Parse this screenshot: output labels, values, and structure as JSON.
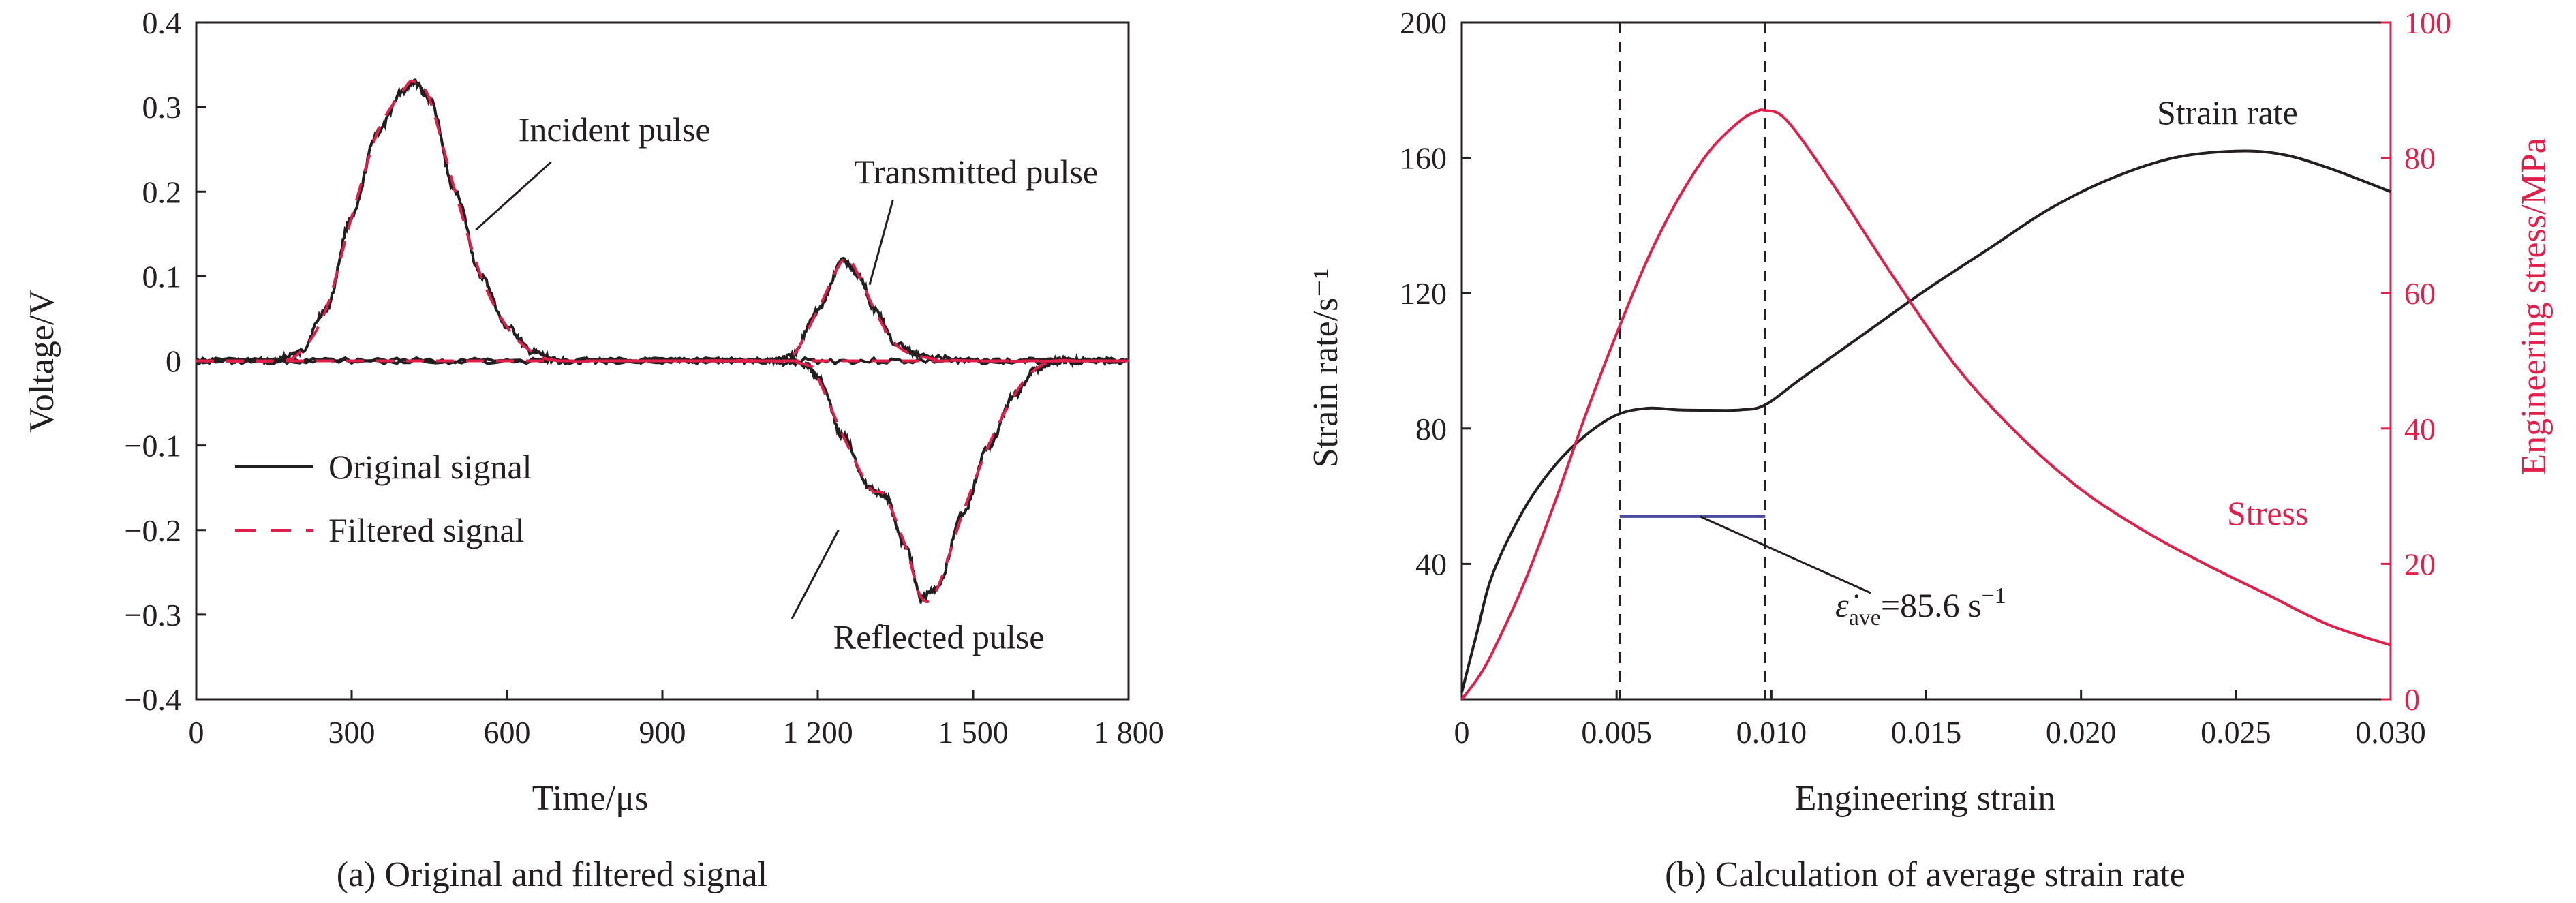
{
  "colors": {
    "original": "#231f20",
    "filtered": "#e0204a",
    "strain_rate": "#231f20",
    "stress": "#e0204a",
    "average_line": "#4a4a9c",
    "right_axis": "#e0204a"
  },
  "chart_data": [
    {
      "type": "line",
      "caption": "(a) Original and filtered signal",
      "xlabel": "Time/μs",
      "ylabel": "Voltage/V",
      "xlim": [
        0,
        1800
      ],
      "ylim": [
        -0.4,
        0.4
      ],
      "x_ticks": [
        "0",
        "300",
        "600",
        "900",
        "1 200",
        "1 500",
        "1 800"
      ],
      "y_ticks": [
        "−0.4",
        "−0.3",
        "−0.2",
        "−0.1",
        "0",
        "0.1",
        "0.2",
        "0.3",
        "0.4"
      ],
      "legend_position": "bottom-left",
      "legend": [
        "Original signal",
        "Filtered signal"
      ],
      "series": [
        {
          "name": "Original signal",
          "style": "solid",
          "curves": [
            {
              "x": [
                0,
                150,
                200,
                250,
                300,
                350,
                400,
                420,
                450,
                500,
                550,
                600,
                650,
                700,
                800,
                1000,
                1200,
                1400,
                1600,
                1800
              ],
              "y": [
                0,
                0,
                0.01,
                0.06,
                0.17,
                0.27,
                0.32,
                0.33,
                0.31,
                0.2,
                0.1,
                0.04,
                0.01,
                0,
                0,
                0,
                0,
                0,
                0,
                0
              ]
            },
            {
              "x": [
                0,
                300,
                600,
                900,
                1100,
                1150,
                1200,
                1250,
                1280,
                1310,
                1350,
                1400,
                1500,
                1800
              ],
              "y": [
                0,
                0,
                0,
                0,
                0,
                0.005,
                0.06,
                0.12,
                0.1,
                0.06,
                0.02,
                0.005,
                0,
                0
              ]
            },
            {
              "x": [
                0,
                300,
                600,
                900,
                1100,
                1180,
                1200,
                1250,
                1300,
                1330,
                1370,
                1400,
                1430,
                1480,
                1530,
                1580,
                1620,
                1660,
                1700,
                1800
              ],
              "y": [
                0,
                0,
                0,
                0,
                0,
                -0.005,
                -0.02,
                -0.09,
                -0.15,
                -0.16,
                -0.22,
                -0.28,
                -0.27,
                -0.18,
                -0.1,
                -0.04,
                -0.01,
                0,
                0,
                0
              ]
            }
          ]
        },
        {
          "name": "Filtered signal",
          "style": "dashed",
          "curves": [
            {
              "x": [
                0,
                150,
                200,
                250,
                300,
                350,
                400,
                420,
                450,
                500,
                550,
                600,
                650,
                700,
                800,
                1000,
                1200,
                1400,
                1600,
                1800
              ],
              "y": [
                0,
                0,
                0.01,
                0.06,
                0.17,
                0.27,
                0.32,
                0.33,
                0.31,
                0.2,
                0.1,
                0.04,
                0.01,
                0,
                0,
                0,
                0,
                0,
                0,
                0
              ]
            },
            {
              "x": [
                0,
                300,
                600,
                900,
                1100,
                1150,
                1200,
                1250,
                1280,
                1310,
                1350,
                1400,
                1500,
                1800
              ],
              "y": [
                0,
                0,
                0,
                0,
                0,
                0.005,
                0.06,
                0.12,
                0.1,
                0.06,
                0.02,
                0.005,
                0,
                0
              ]
            },
            {
              "x": [
                0,
                300,
                600,
                900,
                1100,
                1180,
                1200,
                1250,
                1300,
                1330,
                1370,
                1400,
                1430,
                1480,
                1530,
                1580,
                1620,
                1660,
                1700,
                1800
              ],
              "y": [
                0,
                0,
                0,
                0,
                0,
                -0.005,
                -0.02,
                -0.09,
                -0.15,
                -0.16,
                -0.22,
                -0.28,
                -0.27,
                -0.18,
                -0.1,
                -0.04,
                -0.01,
                0,
                0,
                0
              ]
            }
          ]
        }
      ],
      "annotations": [
        {
          "text": "Incident pulse",
          "x": 622,
          "y": 0.26,
          "point": [
            540,
            0.155
          ]
        },
        {
          "text": "Transmitted pulse",
          "x": 1270,
          "y": 0.21,
          "point": [
            1300,
            0.09
          ]
        },
        {
          "text": "Reflected pulse",
          "x": 1230,
          "y": -0.34,
          "point": [
            1240,
            -0.2
          ]
        }
      ]
    },
    {
      "type": "line",
      "caption": "(b) Calculation of average strain rate",
      "xlabel": "Engineering strain",
      "ylabel": "Strain rate/s⁻¹",
      "ylabel_right": "Engineering stress/MPa",
      "xlim": [
        0,
        0.03
      ],
      "ylim": [
        0,
        200
      ],
      "ylim_right": [
        0,
        100
      ],
      "x_ticks": [
        "0",
        "0.005",
        "0.010",
        "0.015",
        "0.020",
        "0.025",
        "0.030"
      ],
      "y_ticks": [
        "40",
        "80",
        "120",
        "160",
        "200"
      ],
      "y_ticks_right": [
        "0",
        "20",
        "40",
        "60",
        "80",
        "100"
      ],
      "series": [
        {
          "name": "Strain rate",
          "axis": "left",
          "x": [
            0,
            0.0005,
            0.001,
            0.002,
            0.003,
            0.004,
            0.005,
            0.006,
            0.007,
            0.008,
            0.009,
            0.0098,
            0.011,
            0.013,
            0.015,
            0.017,
            0.019,
            0.021,
            0.023,
            0.025,
            0.0265,
            0.028,
            0.03
          ],
          "y": [
            2,
            20,
            37,
            56,
            69,
            78,
            84,
            86,
            85.5,
            85.4,
            85.5,
            87,
            95,
            108,
            121,
            133,
            145,
            154,
            160,
            162,
            161,
            157,
            150
          ]
        },
        {
          "name": "Stress",
          "axis": "right",
          "x": [
            0,
            0.0005,
            0.001,
            0.002,
            0.003,
            0.004,
            0.005,
            0.006,
            0.007,
            0.008,
            0.009,
            0.0095,
            0.0098,
            0.0105,
            0.012,
            0.014,
            0.016,
            0.018,
            0.02,
            0.022,
            0.024,
            0.026,
            0.028,
            0.03
          ],
          "y": [
            0,
            3,
            7,
            17,
            29,
            42,
            54,
            65,
            74,
            81,
            85.5,
            86.8,
            87,
            85.5,
            76,
            62,
            49,
            39,
            31,
            25,
            20,
            15.5,
            11,
            8
          ]
        }
      ],
      "vertical_lines": [
        0.0051,
        0.0098
      ],
      "average_segment": {
        "x": [
          0.0051,
          0.0098
        ],
        "y": 54
      },
      "labels": {
        "strain_rate": "Strain rate",
        "stress": "Stress",
        "average_symbol": "ε̇",
        "average_subscript": "ave",
        "average_value": "=85.6 s",
        "average_exponent": "−1"
      }
    }
  ]
}
